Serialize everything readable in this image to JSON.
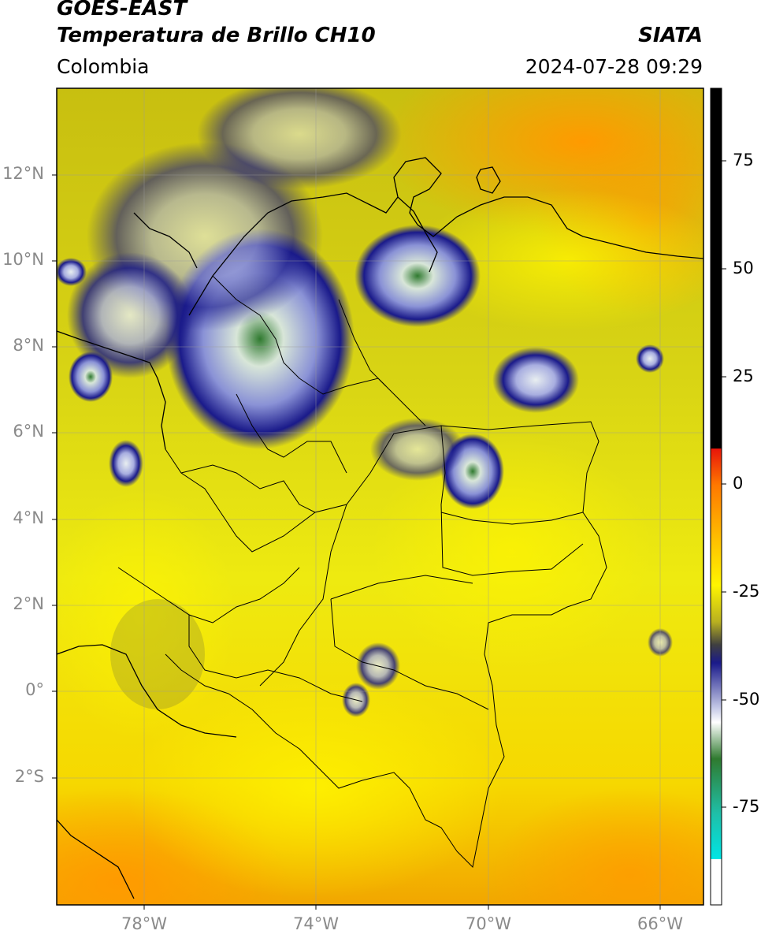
{
  "header": {
    "satellite": "GOES-EAST",
    "product": "Temperatura de Brillo CH10",
    "region": "Colombia",
    "source": "SIATA",
    "datetime": "2024-07-28 09:29"
  },
  "map": {
    "lat_labels": [
      "12°N",
      "10°N",
      "8°N",
      "6°N",
      "4°N",
      "2°N",
      "0°",
      "2°S"
    ],
    "lon_labels": [
      "78°W",
      "74°W",
      "70°W",
      "66°W"
    ]
  },
  "colorbar": {
    "tick_labels": [
      "75",
      "50",
      "25",
      "0",
      "-25",
      "-50",
      "-75"
    ],
    "colors": {
      "black": "#000000",
      "red": "#e8140a",
      "orange": "#ff9a00",
      "yellow": "#fff500",
      "olive": "#8a8a2a",
      "navy": "#1a1a8a",
      "white": "#ffffff",
      "green": "#2f7a2f",
      "teal": "#1fbfa8",
      "cyan": "#00e5e5"
    }
  }
}
